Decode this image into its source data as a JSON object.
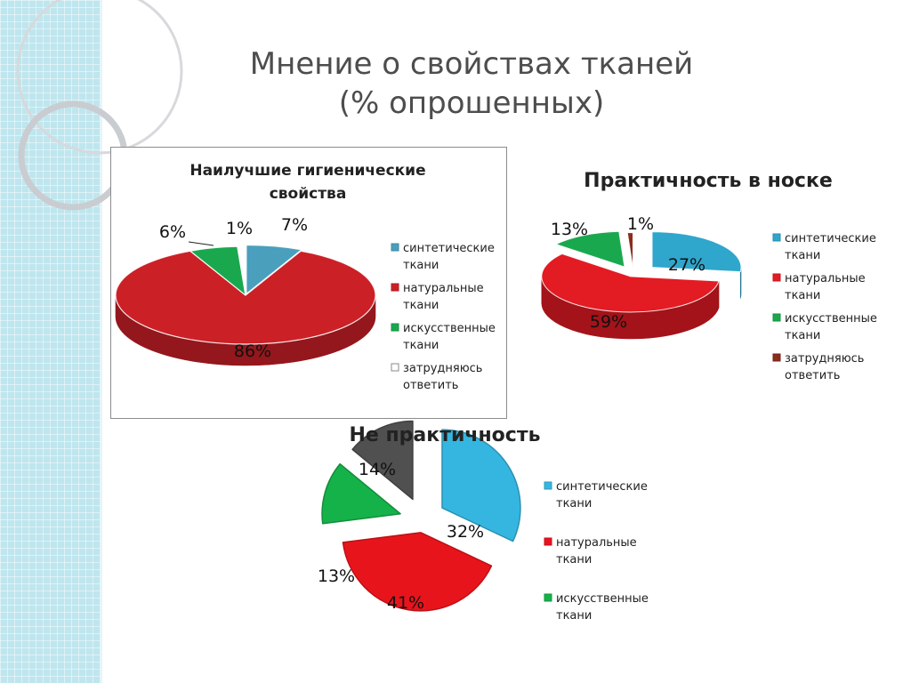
{
  "title": {
    "line1": "Мнение о свойствах тканей",
    "line2": "(% опрошенных)"
  },
  "chart_data": [
    {
      "type": "pie",
      "title": [
        "Наилучшие гигиенические",
        "свойства"
      ],
      "categories": [
        "синтетические ткани",
        "натуральные ткани",
        "искусственные ткани",
        "затрудняюсь ответить"
      ],
      "values": [
        7,
        86,
        6,
        1
      ],
      "labels": [
        "7%",
        "86%",
        "6%",
        "1%"
      ],
      "colors": [
        "#4a9fbd",
        "#cc2027",
        "#1aa84e",
        "#ffffff"
      ],
      "legend": [
        [
          "синтетические",
          "ткани"
        ],
        [
          "натуральные",
          "ткани"
        ],
        [
          "искусственные",
          "ткани"
        ],
        [
          "затрудняюсь",
          "ответить"
        ]
      ],
      "legend_position": "right",
      "style": "3d"
    },
    {
      "type": "pie",
      "title": [
        "Практичность в носке"
      ],
      "categories": [
        "синтетические ткани",
        "натуральные ткани",
        "искусственные ткани",
        "затрудняюсь ответить"
      ],
      "values": [
        27,
        59,
        13,
        1
      ],
      "labels": [
        "27%",
        "59%",
        "13%",
        "1%"
      ],
      "colors": [
        "#2fa6cc",
        "#e31b23",
        "#1aa84e",
        "#8b2c1d"
      ],
      "legend": [
        [
          "синтетические",
          "ткани"
        ],
        [
          "натуральные",
          "ткани"
        ],
        [
          "искусственные",
          "ткани"
        ],
        [
          "затрудняюсь",
          "ответить"
        ]
      ],
      "legend_position": "right",
      "style": "3d exploded"
    },
    {
      "type": "pie",
      "title": [
        "Не практичность"
      ],
      "categories": [
        "синтетические ткани",
        "натуральные ткани",
        "искусственные ткани",
        ""
      ],
      "values": [
        32,
        41,
        13,
        14
      ],
      "labels": [
        "32%",
        "41%",
        "13%",
        "14%"
      ],
      "colors": [
        "#35b6e0",
        "#e8141c",
        "#15b24a",
        "#505050"
      ],
      "legend": [
        [
          "синтетические",
          "ткани"
        ],
        [
          "натуральные",
          "ткани"
        ],
        [
          "искусственные",
          "ткани"
        ]
      ],
      "legend_position": "right",
      "style": "exploded"
    }
  ]
}
